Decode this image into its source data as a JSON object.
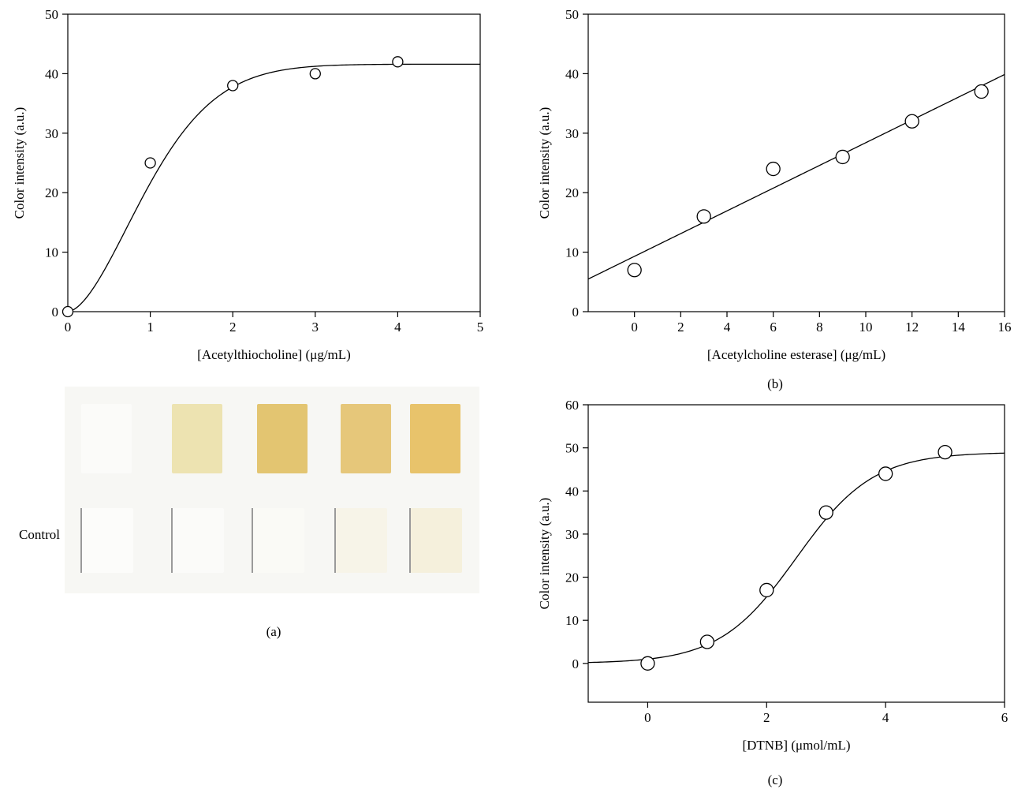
{
  "panels": {
    "a": {
      "caption": "(a)",
      "photo_label": "Control"
    },
    "b": {
      "caption": "(b)"
    },
    "c": {
      "caption": "(c)"
    }
  },
  "strip_colors": {
    "top": [
      "#fbfbf9",
      "#ede3b1",
      "#e3c571",
      "#e6c77a",
      "#e8c36b"
    ],
    "bottom": [
      "#fcfcfa",
      "#fbfbf9",
      "#fafaf6",
      "#f7f4e8",
      "#f5f0dc"
    ],
    "background": "#f7f7f4"
  },
  "chart_data": [
    {
      "id": "a",
      "type": "scatter",
      "xlabel": "[Acetylthiocholine] (μg/mL)",
      "ylabel": "Color intensity (a.u.)",
      "xlim": [
        0,
        5
      ],
      "ylim": [
        0,
        50
      ],
      "xticks": [
        0,
        1,
        2,
        3,
        4,
        5
      ],
      "yticks": [
        0,
        10,
        20,
        30,
        40,
        50
      ],
      "points": [
        [
          0,
          0
        ],
        [
          1,
          25
        ],
        [
          2,
          38
        ],
        [
          3,
          40
        ],
        [
          4,
          42
        ]
      ],
      "fit": {
        "kind": "saturation",
        "xrange": [
          0,
          5
        ]
      }
    },
    {
      "id": "b",
      "type": "scatter",
      "xlabel": "[Acetylcholine esterase] (μg/mL)",
      "ylabel": "Color intensity (a.u.)",
      "xlim": [
        -2,
        16
      ],
      "ylim": [
        0,
        50
      ],
      "xticks": [
        0,
        2,
        4,
        6,
        8,
        10,
        12,
        14,
        16
      ],
      "yticks": [
        0,
        10,
        20,
        30,
        40,
        50
      ],
      "points": [
        [
          0,
          7
        ],
        [
          3,
          16
        ],
        [
          6,
          24
        ],
        [
          9,
          26
        ],
        [
          12,
          32
        ],
        [
          15,
          37
        ]
      ],
      "fit": {
        "kind": "linear",
        "xrange": [
          -2,
          16
        ]
      }
    },
    {
      "id": "c",
      "type": "scatter",
      "xlabel": "[DTNB] (μmol/mL)",
      "ylabel": "Color intensity (a.u.)",
      "xlim": [
        -1,
        6
      ],
      "ylim": [
        -9,
        60
      ],
      "xticks": [
        0,
        2,
        4,
        6
      ],
      "yticks": [
        0,
        10,
        20,
        30,
        40,
        50,
        60
      ],
      "points": [
        [
          0,
          0
        ],
        [
          1,
          5
        ],
        [
          2,
          17
        ],
        [
          3,
          35
        ],
        [
          4,
          44
        ],
        [
          5,
          49
        ]
      ],
      "fit": {
        "kind": "sigmoid",
        "xrange": [
          -1,
          6
        ]
      }
    }
  ]
}
